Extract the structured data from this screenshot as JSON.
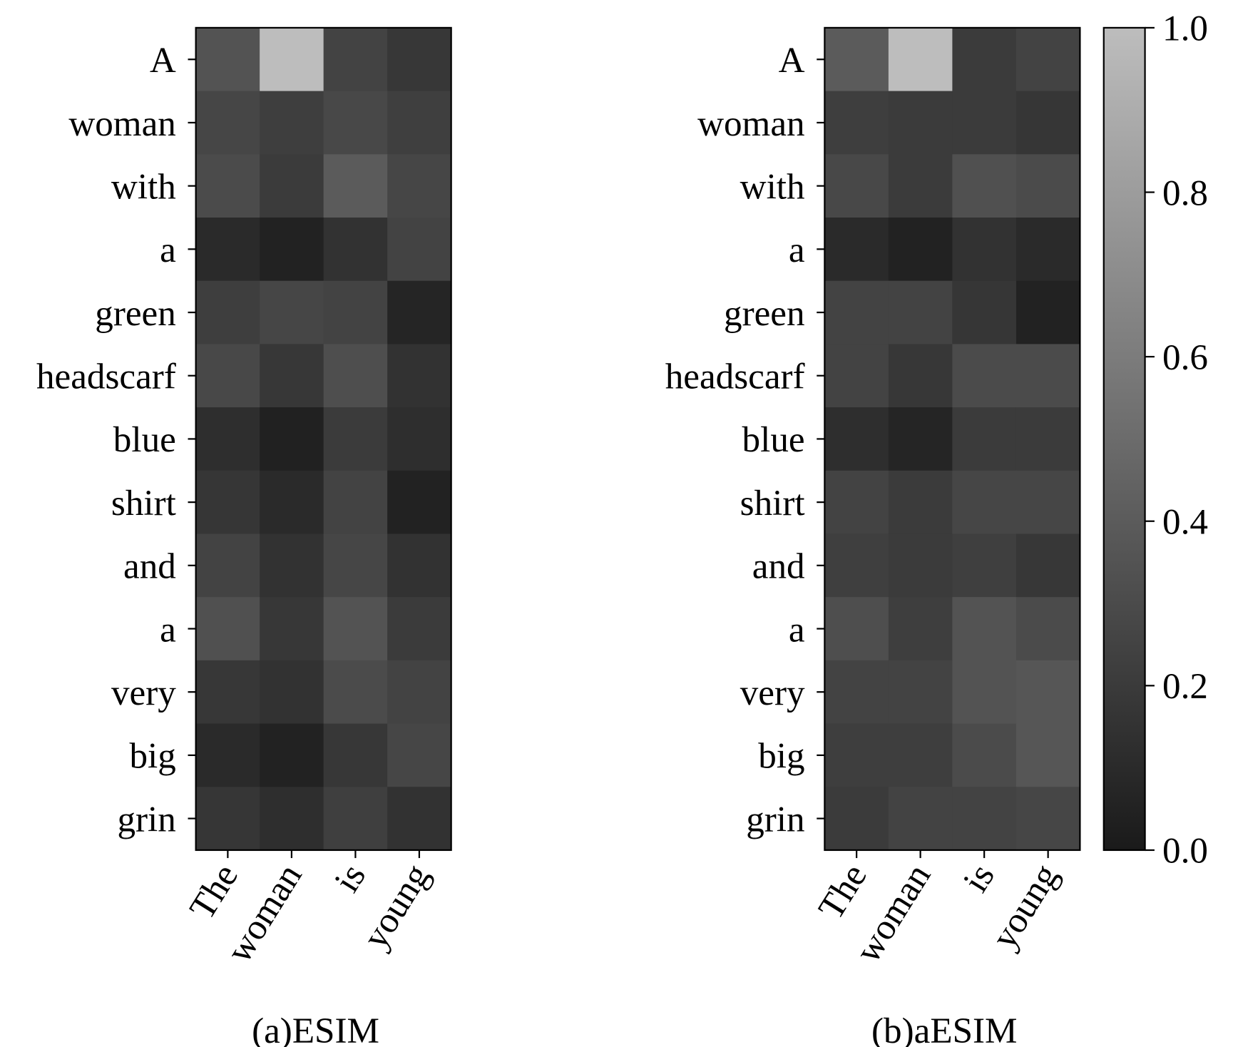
{
  "chart_data": [
    {
      "type": "heatmap",
      "title": "(a)ESIM",
      "x_categories": [
        "The",
        "woman",
        "is",
        "young"
      ],
      "y_categories": [
        "A",
        "woman",
        "with",
        "a",
        "green",
        "headscarf",
        "blue",
        "shirt",
        "and",
        "a",
        "very",
        "big",
        "grin"
      ],
      "values": [
        [
          0.35,
          1.0,
          0.25,
          0.18
        ],
        [
          0.27,
          0.22,
          0.28,
          0.23
        ],
        [
          0.3,
          0.2,
          0.4,
          0.27
        ],
        [
          0.1,
          0.05,
          0.15,
          0.25
        ],
        [
          0.22,
          0.27,
          0.25,
          0.07
        ],
        [
          0.28,
          0.18,
          0.32,
          0.15
        ],
        [
          0.12,
          0.04,
          0.2,
          0.12
        ],
        [
          0.17,
          0.1,
          0.25,
          0.05
        ],
        [
          0.25,
          0.15,
          0.27,
          0.15
        ],
        [
          0.33,
          0.18,
          0.35,
          0.2
        ],
        [
          0.18,
          0.15,
          0.3,
          0.25
        ],
        [
          0.1,
          0.05,
          0.18,
          0.27
        ],
        [
          0.17,
          0.12,
          0.23,
          0.15
        ]
      ]
    },
    {
      "type": "heatmap",
      "title": "(b)aESIM",
      "x_categories": [
        "The",
        "woman",
        "is",
        "young"
      ],
      "y_categories": [
        "A",
        "woman",
        "with",
        "a",
        "green",
        "headscarf",
        "blue",
        "shirt",
        "and",
        "a",
        "very",
        "big",
        "grin"
      ],
      "values": [
        [
          0.4,
          1.0,
          0.2,
          0.25
        ],
        [
          0.22,
          0.2,
          0.2,
          0.17
        ],
        [
          0.28,
          0.2,
          0.33,
          0.3
        ],
        [
          0.1,
          0.05,
          0.15,
          0.1
        ],
        [
          0.25,
          0.25,
          0.17,
          0.05
        ],
        [
          0.25,
          0.18,
          0.3,
          0.3
        ],
        [
          0.12,
          0.07,
          0.2,
          0.2
        ],
        [
          0.25,
          0.2,
          0.27,
          0.27
        ],
        [
          0.23,
          0.2,
          0.23,
          0.18
        ],
        [
          0.32,
          0.22,
          0.35,
          0.3
        ],
        [
          0.25,
          0.25,
          0.35,
          0.37
        ],
        [
          0.22,
          0.22,
          0.3,
          0.37
        ],
        [
          0.2,
          0.25,
          0.25,
          0.27
        ]
      ]
    }
  ],
  "colorbar": {
    "ylim": [
      0,
      1
    ],
    "yticks": [
      {
        "value": 0,
        "label": "0.0"
      },
      0.2,
      0.4,
      0.6,
      0.8,
      {
        "value": 1,
        "label": "1.0"
      }
    ],
    "colors": [
      "#1a1a1a",
      "#bdbdbd"
    ]
  }
}
